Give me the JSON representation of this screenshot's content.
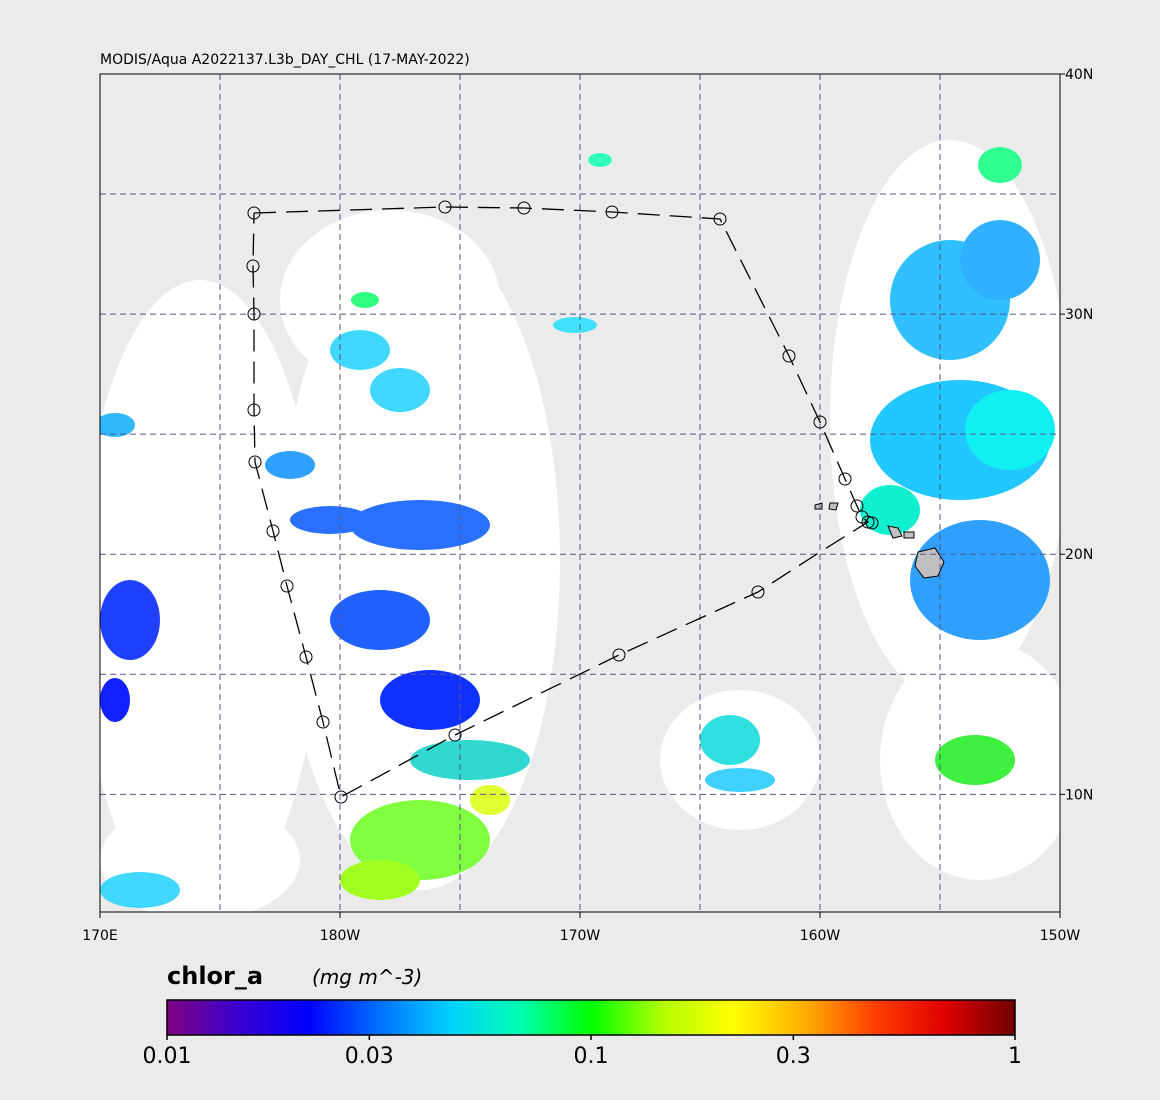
{
  "chart_data": {
    "type": "map",
    "title": "MODIS/Aqua A2022137.L3b_DAY_CHL (17-MAY-2022)",
    "xlim": [
      170,
      210
    ],
    "ylim": [
      5.1,
      40
    ],
    "xticks": [
      {
        "value": 170,
        "label": "170E"
      },
      {
        "value": 180,
        "label": "180W"
      },
      {
        "value": 190,
        "label": "170W"
      },
      {
        "value": 200,
        "label": "160W"
      },
      {
        "value": 210,
        "label": "150W"
      }
    ],
    "yticks": [
      {
        "value": 40,
        "label": "40N"
      },
      {
        "value": 30,
        "label": "30N"
      },
      {
        "value": 20,
        "label": "20N"
      },
      {
        "value": 10,
        "label": "10N"
      }
    ],
    "xgrid": [
      175,
      180,
      185,
      190,
      195,
      200,
      205
    ],
    "ygrid": [
      10,
      15,
      20,
      25,
      30,
      35
    ],
    "grid_color": "#55558a",
    "colorbar": {
      "label": "chlor_a",
      "units": "(mg m^-3)",
      "log": true,
      "lim": [
        0.01,
        1
      ],
      "ticks": [
        0.01,
        0.03,
        0.1,
        0.3,
        1
      ],
      "colors": [
        "#800080",
        "#3a00d0",
        "#0000ff",
        "#0070ff",
        "#00d0ff",
        "#00ffb0",
        "#00ff00",
        "#b0ff00",
        "#ffff00",
        "#ffb000",
        "#ff4000",
        "#e00000",
        "#700000"
      ]
    }
  }
}
